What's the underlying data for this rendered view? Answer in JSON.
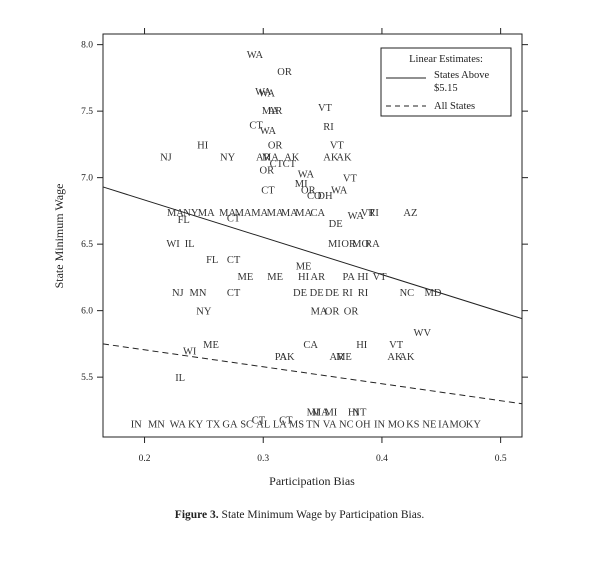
{
  "chart_data": {
    "type": "scatter",
    "title": "",
    "xlabel": "Participation Bias",
    "ylabel": "State Minimum Wage",
    "xlim": [
      0.165,
      0.518
    ],
    "ylim": [
      5.05,
      8.08
    ],
    "xticks": [
      {
        "value": 0.2,
        "label": "0.2"
      },
      {
        "value": 0.3,
        "label": "0.3"
      },
      {
        "value": 0.4,
        "label": "0.4"
      },
      {
        "value": 0.5,
        "label": "0.5"
      }
    ],
    "yticks": [
      {
        "value": 5.5,
        "label": "5.5"
      },
      {
        "value": 6.0,
        "label": "6.0"
      },
      {
        "value": 6.5,
        "label": "6.5"
      },
      {
        "value": 7.0,
        "label": "7.0"
      },
      {
        "value": 7.5,
        "label": "7.5"
      },
      {
        "value": 8.0,
        "label": "8.0"
      }
    ],
    "legend": {
      "title": "Linear Estimates:",
      "position": "top-right",
      "entries": [
        {
          "label_line1": "States Above",
          "label_line2": "$5.15",
          "style": "solid"
        },
        {
          "label_line1": "All States",
          "label_line2": "",
          "style": "dashed"
        }
      ]
    },
    "lines": [
      {
        "name": "States Above $5.15",
        "style": "solid",
        "x": [
          0.165,
          0.518
        ],
        "y": [
          6.93,
          5.94
        ]
      },
      {
        "name": "All States",
        "style": "dashed",
        "x": [
          0.165,
          0.518
        ],
        "y": [
          5.75,
          5.3
        ]
      }
    ],
    "points": [
      {
        "label": "WA",
        "x": 0.293,
        "y": 7.93
      },
      {
        "label": "OR",
        "x": 0.318,
        "y": 7.8
      },
      {
        "label": "WA",
        "x": 0.303,
        "y": 7.64
      },
      {
        "label": "WA",
        "x": 0.3,
        "y": 7.65
      },
      {
        "label": "MA",
        "x": 0.306,
        "y": 7.51
      },
      {
        "label": "AR",
        "x": 0.31,
        "y": 7.51
      },
      {
        "label": "VT",
        "x": 0.352,
        "y": 7.53
      },
      {
        "label": "CT",
        "x": 0.294,
        "y": 7.4
      },
      {
        "label": "WA",
        "x": 0.304,
        "y": 7.36
      },
      {
        "label": "RI",
        "x": 0.355,
        "y": 7.39
      },
      {
        "label": "HI",
        "x": 0.249,
        "y": 7.25
      },
      {
        "label": "OR",
        "x": 0.31,
        "y": 7.25
      },
      {
        "label": "VT",
        "x": 0.362,
        "y": 7.25
      },
      {
        "label": "NJ",
        "x": 0.218,
        "y": 7.16
      },
      {
        "label": "NY",
        "x": 0.27,
        "y": 7.16
      },
      {
        "label": "AR",
        "x": 0.3,
        "y": 7.16
      },
      {
        "label": "MA",
        "x": 0.306,
        "y": 7.16
      },
      {
        "label": "AK",
        "x": 0.324,
        "y": 7.16
      },
      {
        "label": "AK",
        "x": 0.357,
        "y": 7.16
      },
      {
        "label": "AK",
        "x": 0.368,
        "y": 7.16
      },
      {
        "label": "CT",
        "x": 0.311,
        "y": 7.11
      },
      {
        "label": "CT",
        "x": 0.322,
        "y": 7.11
      },
      {
        "label": "OR",
        "x": 0.303,
        "y": 7.06
      },
      {
        "label": "WA",
        "x": 0.336,
        "y": 7.03
      },
      {
        "label": "VT",
        "x": 0.373,
        "y": 7.0
      },
      {
        "label": "MI",
        "x": 0.332,
        "y": 6.96
      },
      {
        "label": "CT",
        "x": 0.304,
        "y": 6.91
      },
      {
        "label": "OR",
        "x": 0.338,
        "y": 6.91
      },
      {
        "label": "WA",
        "x": 0.364,
        "y": 6.91
      },
      {
        "label": "CO",
        "x": 0.343,
        "y": 6.87
      },
      {
        "label": "DH",
        "x": 0.352,
        "y": 6.87
      },
      {
        "label": "MA",
        "x": 0.226,
        "y": 6.74
      },
      {
        "label": "NY",
        "x": 0.239,
        "y": 6.74
      },
      {
        "label": "MA",
        "x": 0.252,
        "y": 6.74
      },
      {
        "label": "MA",
        "x": 0.27,
        "y": 6.74
      },
      {
        "label": "MA",
        "x": 0.283,
        "y": 6.74
      },
      {
        "label": "MA",
        "x": 0.297,
        "y": 6.74
      },
      {
        "label": "MA",
        "x": 0.31,
        "y": 6.74
      },
      {
        "label": "MA",
        "x": 0.322,
        "y": 6.74
      },
      {
        "label": "MA",
        "x": 0.334,
        "y": 6.74
      },
      {
        "label": "CA",
        "x": 0.346,
        "y": 6.74
      },
      {
        "label": "WA",
        "x": 0.378,
        "y": 6.72
      },
      {
        "label": "VT",
        "x": 0.388,
        "y": 6.74
      },
      {
        "label": "RI",
        "x": 0.393,
        "y": 6.74
      },
      {
        "label": "AZ",
        "x": 0.424,
        "y": 6.74
      },
      {
        "label": "FL",
        "x": 0.233,
        "y": 6.69
      },
      {
        "label": "CT",
        "x": 0.275,
        "y": 6.7
      },
      {
        "label": "DE",
        "x": 0.361,
        "y": 6.66
      },
      {
        "label": "WI",
        "x": 0.224,
        "y": 6.51
      },
      {
        "label": "IL",
        "x": 0.238,
        "y": 6.51
      },
      {
        "label": "MI",
        "x": 0.36,
        "y": 6.51
      },
      {
        "label": "OR",
        "x": 0.372,
        "y": 6.51
      },
      {
        "label": "MO",
        "x": 0.382,
        "y": 6.51
      },
      {
        "label": "RA",
        "x": 0.392,
        "y": 6.51
      },
      {
        "label": "FL",
        "x": 0.257,
        "y": 6.39
      },
      {
        "label": "CT",
        "x": 0.275,
        "y": 6.39
      },
      {
        "label": "ME",
        "x": 0.334,
        "y": 6.34
      },
      {
        "label": "ME",
        "x": 0.285,
        "y": 6.26
      },
      {
        "label": "ME",
        "x": 0.31,
        "y": 6.26
      },
      {
        "label": "HI",
        "x": 0.334,
        "y": 6.26
      },
      {
        "label": "AR",
        "x": 0.346,
        "y": 6.26
      },
      {
        "label": "PA",
        "x": 0.372,
        "y": 6.26
      },
      {
        "label": "HI",
        "x": 0.384,
        "y": 6.26
      },
      {
        "label": "VT",
        "x": 0.398,
        "y": 6.26
      },
      {
        "label": "NJ",
        "x": 0.228,
        "y": 6.14
      },
      {
        "label": "MN",
        "x": 0.245,
        "y": 6.14
      },
      {
        "label": "CT",
        "x": 0.275,
        "y": 6.14
      },
      {
        "label": "DE",
        "x": 0.331,
        "y": 6.14
      },
      {
        "label": "DE",
        "x": 0.345,
        "y": 6.14
      },
      {
        "label": "DE",
        "x": 0.358,
        "y": 6.14
      },
      {
        "label": "RI",
        "x": 0.371,
        "y": 6.14
      },
      {
        "label": "RI",
        "x": 0.384,
        "y": 6.14
      },
      {
        "label": "NC",
        "x": 0.421,
        "y": 6.14
      },
      {
        "label": "MD",
        "x": 0.443,
        "y": 6.14
      },
      {
        "label": "NY",
        "x": 0.25,
        "y": 6.0
      },
      {
        "label": "MA",
        "x": 0.347,
        "y": 6.0
      },
      {
        "label": "OR",
        "x": 0.358,
        "y": 6.0
      },
      {
        "label": "OR",
        "x": 0.374,
        "y": 6.0
      },
      {
        "label": "WV",
        "x": 0.434,
        "y": 5.84
      },
      {
        "label": "ME",
        "x": 0.256,
        "y": 5.75
      },
      {
        "label": "CA",
        "x": 0.34,
        "y": 5.75
      },
      {
        "label": "HI",
        "x": 0.383,
        "y": 5.75
      },
      {
        "label": "VT",
        "x": 0.412,
        "y": 5.75
      },
      {
        "label": "WI",
        "x": 0.238,
        "y": 5.7
      },
      {
        "label": "PA",
        "x": 0.315,
        "y": 5.66
      },
      {
        "label": "AK",
        "x": 0.32,
        "y": 5.66
      },
      {
        "label": "AR",
        "x": 0.362,
        "y": 5.66
      },
      {
        "label": "ME",
        "x": 0.368,
        "y": 5.66
      },
      {
        "label": "AK",
        "x": 0.411,
        "y": 5.66
      },
      {
        "label": "AK",
        "x": 0.421,
        "y": 5.66
      },
      {
        "label": "IL",
        "x": 0.23,
        "y": 5.5
      },
      {
        "label": "MI",
        "x": 0.342,
        "y": 5.24
      },
      {
        "label": "MA",
        "x": 0.348,
        "y": 5.24
      },
      {
        "label": "MI",
        "x": 0.357,
        "y": 5.24
      },
      {
        "label": "HI",
        "x": 0.376,
        "y": 5.24
      },
      {
        "label": "NT",
        "x": 0.381,
        "y": 5.24
      },
      {
        "label": "CT",
        "x": 0.296,
        "y": 5.18
      },
      {
        "label": "CT",
        "x": 0.319,
        "y": 5.18
      },
      {
        "label": "IN",
        "x": 0.193,
        "y": 5.15
      },
      {
        "label": "MN",
        "x": 0.21,
        "y": 5.15
      },
      {
        "label": "WA",
        "x": 0.228,
        "y": 5.15
      },
      {
        "label": "KY",
        "x": 0.243,
        "y": 5.15
      },
      {
        "label": "TX",
        "x": 0.258,
        "y": 5.15
      },
      {
        "label": "GA",
        "x": 0.272,
        "y": 5.15
      },
      {
        "label": "SC",
        "x": 0.286,
        "y": 5.15
      },
      {
        "label": "AL",
        "x": 0.3,
        "y": 5.15
      },
      {
        "label": "LA",
        "x": 0.314,
        "y": 5.15
      },
      {
        "label": "MS",
        "x": 0.328,
        "y": 5.15
      },
      {
        "label": "TN",
        "x": 0.342,
        "y": 5.15
      },
      {
        "label": "VA",
        "x": 0.356,
        "y": 5.15
      },
      {
        "label": "NC",
        "x": 0.37,
        "y": 5.15
      },
      {
        "label": "OH",
        "x": 0.384,
        "y": 5.15
      },
      {
        "label": "IN",
        "x": 0.398,
        "y": 5.15
      },
      {
        "label": "MO",
        "x": 0.412,
        "y": 5.15
      },
      {
        "label": "KS",
        "x": 0.426,
        "y": 5.15
      },
      {
        "label": "NE",
        "x": 0.44,
        "y": 5.15
      },
      {
        "label": "IA",
        "x": 0.452,
        "y": 5.15
      },
      {
        "label": "MO",
        "x": 0.464,
        "y": 5.15
      },
      {
        "label": "KY",
        "x": 0.477,
        "y": 5.15
      }
    ]
  },
  "caption": {
    "prefix": "Figure 3.",
    "text": "State Minimum Wage by Participation Bias."
  },
  "colors": {
    "ink": "#222222",
    "point_text": "#333333"
  }
}
